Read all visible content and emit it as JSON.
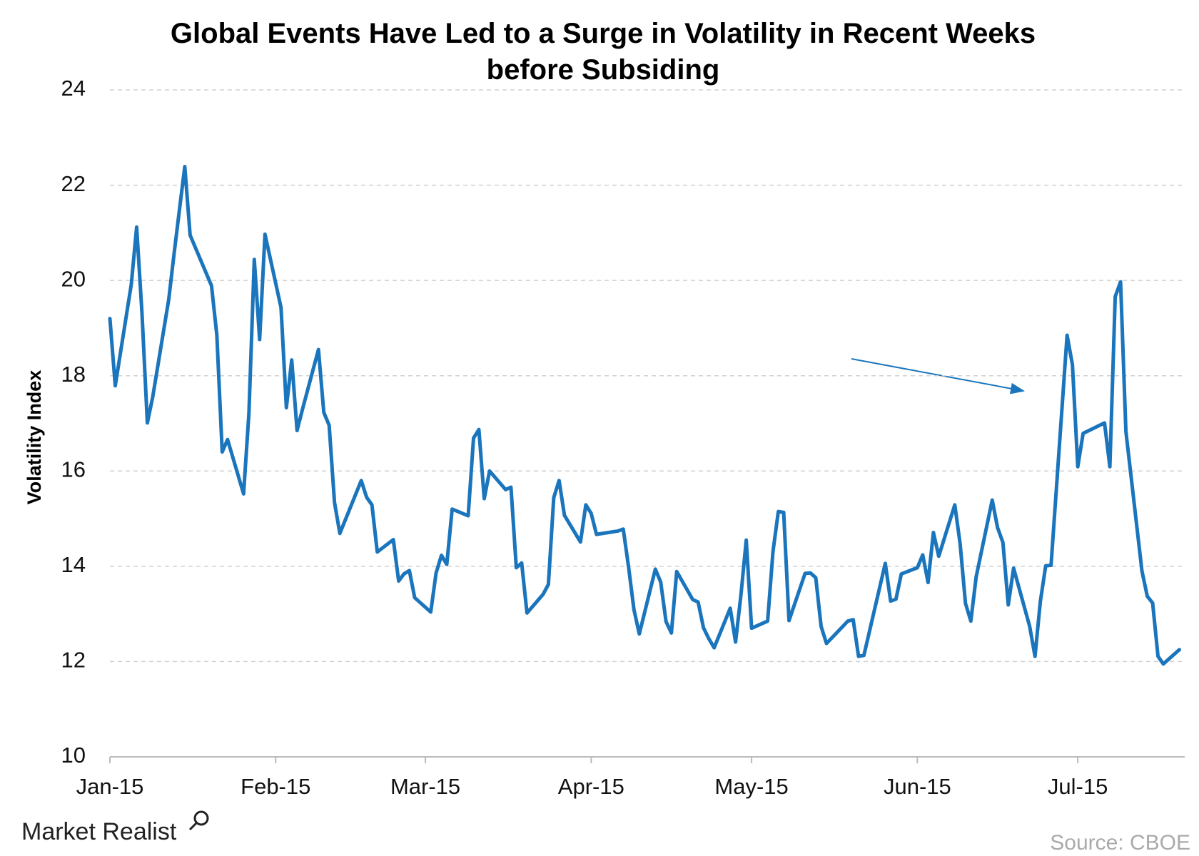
{
  "chart_data": {
    "type": "line",
    "title": "Global Events Have Led to a Surge in Volatility in Recent Weeks before Subsiding",
    "y_label": "Volatility Index",
    "logo": "Market Realist",
    "source": "Source: CBOE",
    "color": "#1a75bc",
    "grid": true,
    "x": [
      0,
      1,
      4,
      5,
      6,
      7,
      8,
      11,
      12,
      13,
      14,
      15,
      19,
      20,
      21,
      22,
      25,
      26,
      27,
      28,
      29,
      32,
      33,
      34,
      35,
      36,
      39,
      40,
      41,
      42,
      43,
      47,
      48,
      49,
      50,
      53,
      54,
      55,
      56,
      57,
      60,
      61,
      62,
      63,
      64,
      67,
      68,
      69,
      70,
      71,
      74,
      75,
      76,
      77,
      78,
      81,
      82,
      83,
      84,
      85,
      88,
      89,
      90,
      91,
      95,
      96,
      97,
      98,
      99,
      102,
      103,
      104,
      105,
      106,
      109,
      110,
      111,
      112,
      113,
      116,
      117,
      118,
      119,
      120,
      123,
      124,
      125,
      126,
      127,
      130,
      131,
      132,
      133,
      134,
      137,
      138,
      139,
      140,
      141,
      145,
      146,
      147,
      148,
      151,
      152,
      153,
      154,
      155,
      158,
      159,
      160,
      161,
      162,
      165,
      166,
      167,
      168,
      169,
      172,
      173,
      174,
      175,
      176,
      179,
      180,
      181,
      182,
      186,
      187,
      188,
      189,
      190,
      193,
      194,
      195,
      196,
      197,
      200
    ],
    "values": [
      19.2,
      17.79,
      19.92,
      21.12,
      19.31,
      17.01,
      17.55,
      19.6,
      20.56,
      21.48,
      22.39,
      20.95,
      19.89,
      18.85,
      16.4,
      16.66,
      15.52,
      17.22,
      20.44,
      18.76,
      20.97,
      19.43,
      17.33,
      18.33,
      16.85,
      17.29,
      18.55,
      17.23,
      16.96,
      15.34,
      14.69,
      15.8,
      15.45,
      15.29,
      14.3,
      14.56,
      13.69,
      13.84,
      13.91,
      13.34,
      13.04,
      13.86,
      14.23,
      14.04,
      15.2,
      15.06,
      16.69,
      16.87,
      15.42,
      16.0,
      15.61,
      15.66,
      13.97,
      14.07,
      13.02,
      13.41,
      13.62,
      15.44,
      15.8,
      15.07,
      14.51,
      15.29,
      15.11,
      14.67,
      14.74,
      14.78,
      13.98,
      13.09,
      12.58,
      13.94,
      13.67,
      12.84,
      12.6,
      13.89,
      13.3,
      13.25,
      12.71,
      12.48,
      12.29,
      13.12,
      12.41,
      13.39,
      14.55,
      12.7,
      12.85,
      14.31,
      15.15,
      15.13,
      12.86,
      13.85,
      13.86,
      13.76,
      12.74,
      12.38,
      12.73,
      12.85,
      12.88,
      12.11,
      12.13,
      14.06,
      13.27,
      13.31,
      13.84,
      13.97,
      14.24,
      13.66,
      14.71,
      14.21,
      15.29,
      14.47,
      13.22,
      12.85,
      13.78,
      15.39,
      14.81,
      14.5,
      13.19,
      13.96,
      12.74,
      12.11,
      13.26,
      14.01,
      14.02,
      18.85,
      18.23,
      16.09,
      16.79,
      17.01,
      16.09,
      19.66,
      19.97,
      16.83,
      13.9,
      13.37,
      13.23,
      12.11,
      11.95,
      12.25
    ],
    "xlim": [
      0,
      201
    ],
    "xticks": [
      {
        "value": 0,
        "label": "Jan-15"
      },
      {
        "value": 31,
        "label": "Feb-15"
      },
      {
        "value": 59,
        "label": "Mar-15"
      },
      {
        "value": 90,
        "label": "Apr-15"
      },
      {
        "value": 120,
        "label": "May-15"
      },
      {
        "value": 151,
        "label": "Jun-15"
      },
      {
        "value": 181,
        "label": "Jul-15"
      }
    ],
    "ylim": [
      10,
      24
    ],
    "yticks": [
      10,
      12,
      14,
      16,
      18,
      20,
      22,
      24
    ]
  }
}
